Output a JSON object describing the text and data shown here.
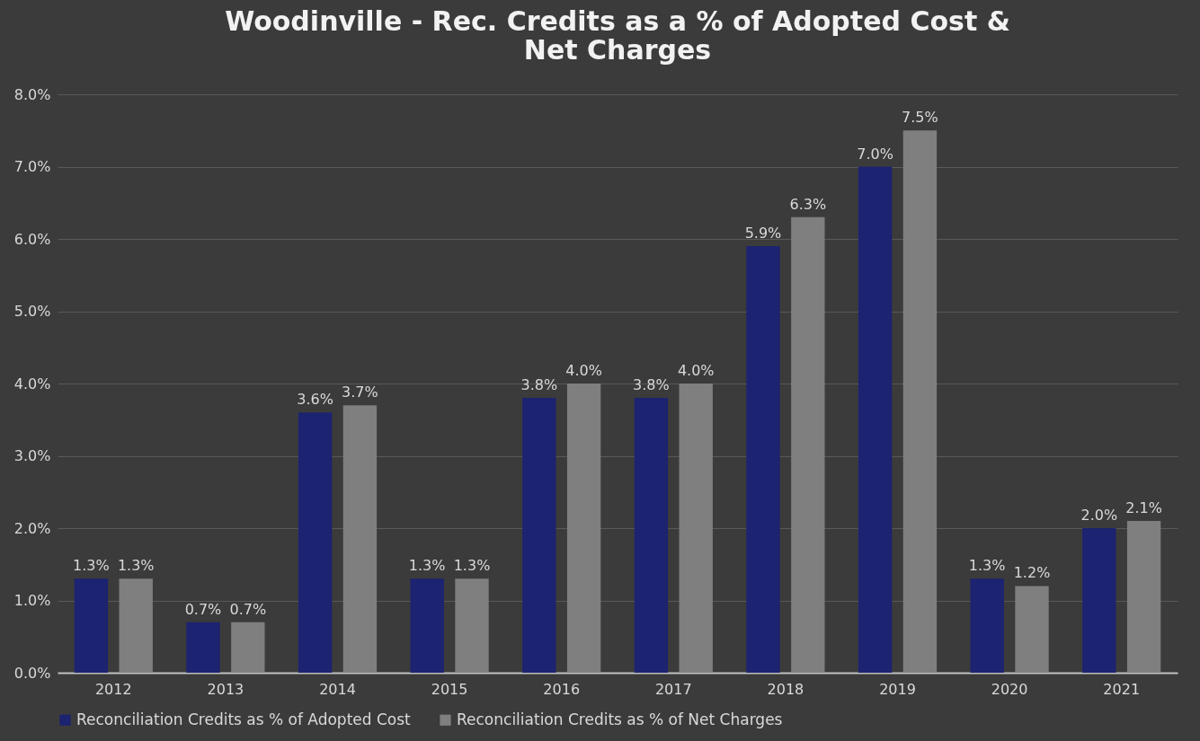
{
  "chart_data": {
    "type": "bar",
    "title": [
      "Woodinville - Rec. Credits as a % of Adopted Cost &",
      "Net Charges"
    ],
    "categories": [
      "2012",
      "2013",
      "2014",
      "2015",
      "2016",
      "2017",
      "2018",
      "2019",
      "2020",
      "2021"
    ],
    "series": [
      {
        "name": "Reconciliation Credits as % of Adopted Cost",
        "color": "#1c2370",
        "values": [
          1.3,
          0.7,
          3.6,
          1.3,
          3.8,
          3.8,
          5.9,
          7.0,
          1.3,
          2.0
        ],
        "value_labels": [
          "1.3%",
          "0.7%",
          "3.6%",
          "1.3%",
          "3.8%",
          "3.8%",
          "5.9%",
          "7.0%",
          "1.3%",
          "2.0%"
        ]
      },
      {
        "name": "Reconciliation Credits as % of Net Charges",
        "color": "#7f7f7f",
        "values": [
          1.3,
          0.7,
          3.7,
          1.3,
          4.0,
          4.0,
          6.3,
          7.5,
          1.2,
          2.1
        ],
        "value_labels": [
          "1.3%",
          "0.7%",
          "3.7%",
          "1.3%",
          "4.0%",
          "4.0%",
          "6.3%",
          "7.5%",
          "1.2%",
          "2.1%"
        ]
      }
    ],
    "ylim": [
      0,
      8
    ],
    "yticks": [
      {
        "value": 0,
        "label": "0.0%"
      },
      {
        "value": 1,
        "label": "1.0%"
      },
      {
        "value": 2,
        "label": "2.0%"
      },
      {
        "value": 3,
        "label": "3.0%"
      },
      {
        "value": 4,
        "label": "4.0%"
      },
      {
        "value": 5,
        "label": "5.0%"
      },
      {
        "value": 6,
        "label": "6.0%"
      },
      {
        "value": 7,
        "label": "7.0%"
      },
      {
        "value": 8,
        "label": "8.0%"
      }
    ],
    "grid": "y",
    "legend": "bottom"
  }
}
